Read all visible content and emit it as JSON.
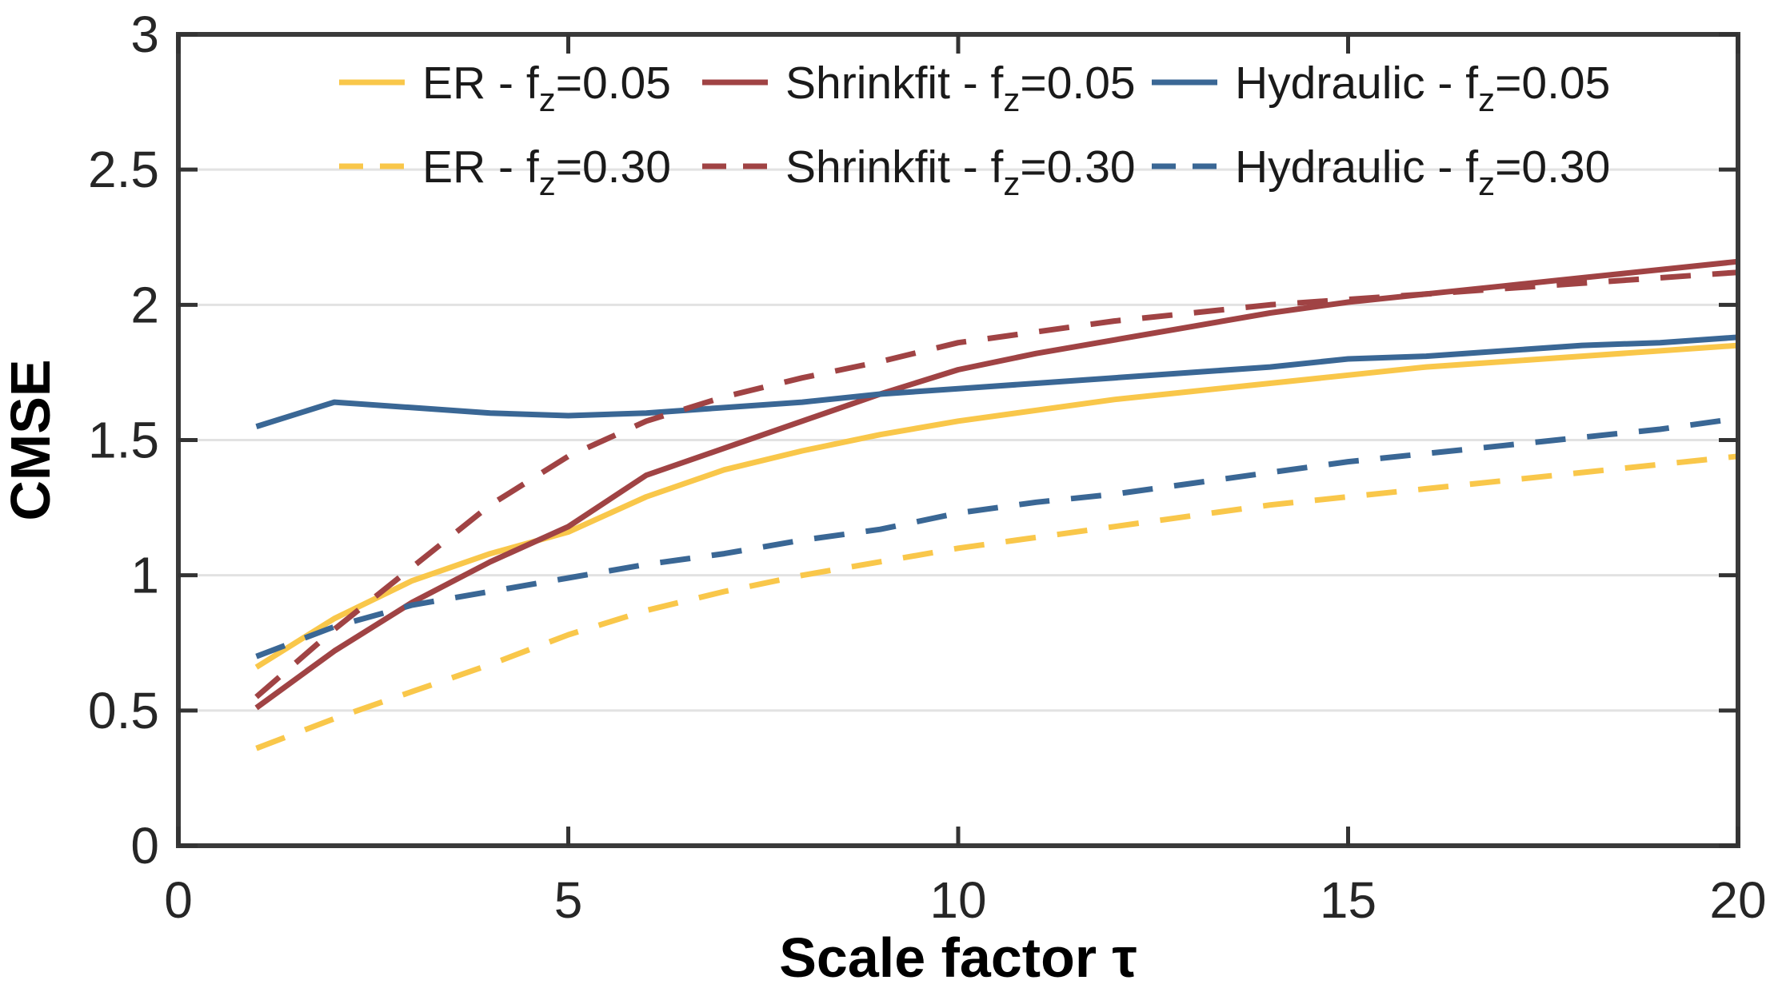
{
  "chart_data": {
    "type": "line",
    "title": "",
    "xlabel": "Scale factor τ",
    "ylabel": "CMSE",
    "xlim": [
      0,
      20
    ],
    "ylim": [
      0,
      3
    ],
    "grid": "horizontal-only",
    "legend_position": "top-inside-two-rows",
    "xticks": [
      0,
      5,
      10,
      15,
      20
    ],
    "yticks": [
      0,
      0.5,
      1,
      1.5,
      2,
      2.5,
      3
    ],
    "xtick_labels": [
      "0",
      "5",
      "10",
      "15",
      "20"
    ],
    "ytick_labels": [
      "0",
      "0.5",
      "1",
      "1.5",
      "2",
      "2.5",
      "3"
    ],
    "x": [
      1,
      2,
      3,
      4,
      5,
      6,
      7,
      8,
      9,
      10,
      11,
      12,
      13,
      14,
      15,
      16,
      17,
      18,
      19,
      20
    ],
    "series": [
      {
        "name": "ER - fz=0.05",
        "legend": {
          "pre": "ER - f",
          "sub": "z",
          "post": "=0.05"
        },
        "color": "#F9C74A",
        "style": "solid",
        "values": [
          0.66,
          0.84,
          0.98,
          1.08,
          1.16,
          1.29,
          1.39,
          1.46,
          1.52,
          1.57,
          1.61,
          1.65,
          1.68,
          1.71,
          1.74,
          1.77,
          1.79,
          1.81,
          1.83,
          1.85
        ]
      },
      {
        "name": "Shrinkfit - fz=0.05",
        "legend": {
          "pre": "Shrinkfit - f",
          "sub": "z",
          "post": "=0.05"
        },
        "color": "#A04344",
        "style": "solid",
        "values": [
          0.51,
          0.72,
          0.9,
          1.05,
          1.18,
          1.37,
          1.47,
          1.57,
          1.67,
          1.76,
          1.82,
          1.87,
          1.92,
          1.97,
          2.01,
          2.04,
          2.07,
          2.1,
          2.13,
          2.16
        ]
      },
      {
        "name": "Hydraulic - fz=0.05",
        "legend": {
          "pre": "Hydraulic - f",
          "sub": "z",
          "post": "=0.05"
        },
        "color": "#3A6795",
        "style": "solid",
        "values": [
          1.55,
          1.64,
          1.62,
          1.6,
          1.59,
          1.6,
          1.62,
          1.64,
          1.67,
          1.69,
          1.71,
          1.73,
          1.75,
          1.77,
          1.8,
          1.81,
          1.83,
          1.85,
          1.86,
          1.88
        ]
      },
      {
        "name": "ER - fz=0.30",
        "legend": {
          "pre": "ER - f",
          "sub": "z",
          "post": "=0.30"
        },
        "color": "#F9C74A",
        "style": "dashed",
        "values": [
          0.36,
          0.47,
          0.57,
          0.67,
          0.78,
          0.87,
          0.94,
          1.0,
          1.05,
          1.1,
          1.14,
          1.18,
          1.22,
          1.26,
          1.29,
          1.32,
          1.35,
          1.38,
          1.41,
          1.44
        ]
      },
      {
        "name": "Shrinkfit - fz=0.30",
        "legend": {
          "pre": "Shrinkfit - f",
          "sub": "z",
          "post": "=0.30"
        },
        "color": "#A04344",
        "style": "dashed",
        "values": [
          0.55,
          0.8,
          1.03,
          1.26,
          1.44,
          1.57,
          1.66,
          1.73,
          1.79,
          1.86,
          1.9,
          1.94,
          1.97,
          2.0,
          2.02,
          2.04,
          2.06,
          2.08,
          2.1,
          2.12
        ]
      },
      {
        "name": "Hydraulic - fz=0.30",
        "legend": {
          "pre": "Hydraulic - f",
          "sub": "z",
          "post": "=0.30"
        },
        "color": "#3A6795",
        "style": "dashed",
        "values": [
          0.7,
          0.81,
          0.89,
          0.94,
          0.99,
          1.04,
          1.08,
          1.13,
          1.17,
          1.23,
          1.27,
          1.3,
          1.34,
          1.38,
          1.42,
          1.45,
          1.48,
          1.51,
          1.54,
          1.58
        ]
      }
    ],
    "colors": {
      "yellow": "#F9C74A",
      "red": "#A04344",
      "blue": "#3A6795",
      "axis_box": "#3a3a3a",
      "tick": "#333333",
      "gridline": "#e2e2e2",
      "background": "#ffffff"
    }
  }
}
